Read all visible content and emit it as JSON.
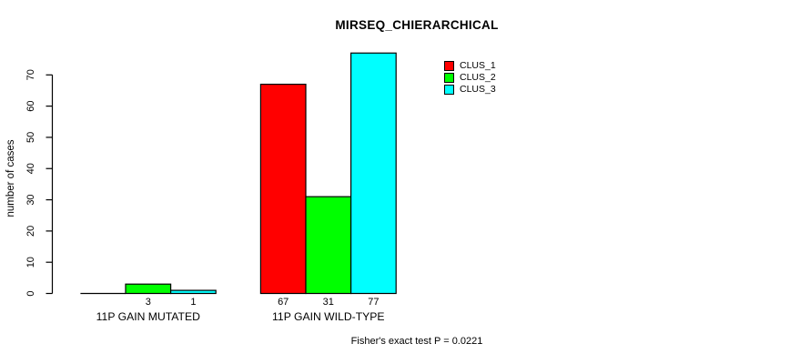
{
  "title": "MIRSEQ_CHIERARCHICAL",
  "footnote": "Fisher's exact test P = 0.0221",
  "colors": {
    "clus_1": "#FF0000",
    "clus_2": "#00FF00",
    "clus_3": "#00FFFF",
    "axis": "#000000",
    "text": "#000000",
    "background": "#FFFFFF"
  },
  "chart_data": {
    "type": "bar",
    "title": "MIRSEQ_CHIERARCHICAL",
    "categories": [
      "11P GAIN MUTATED",
      "11P GAIN WILD-TYPE"
    ],
    "series": [
      {
        "name": "CLUS_1",
        "color": "#FF0000",
        "values": [
          0,
          67
        ]
      },
      {
        "name": "CLUS_2",
        "color": "#00FF00",
        "values": [
          3,
          31
        ]
      },
      {
        "name": "CLUS_3",
        "color": "#00FFFF",
        "values": [
          1,
          77
        ]
      }
    ],
    "bar_value_labels": [
      [
        "",
        "67"
      ],
      [
        "3",
        "31"
      ],
      [
        "1",
        "77"
      ]
    ],
    "ylabel": "number of cases",
    "xlabel": "",
    "yticks": [
      0,
      10,
      20,
      30,
      40,
      50,
      60,
      70
    ],
    "ylim": [
      0,
      70
    ],
    "grid": false,
    "legend": {
      "position": "top-right",
      "entries": [
        "CLUS_1",
        "CLUS_2",
        "CLUS_3"
      ]
    },
    "annotation": "Fisher's exact test P = 0.0221"
  }
}
